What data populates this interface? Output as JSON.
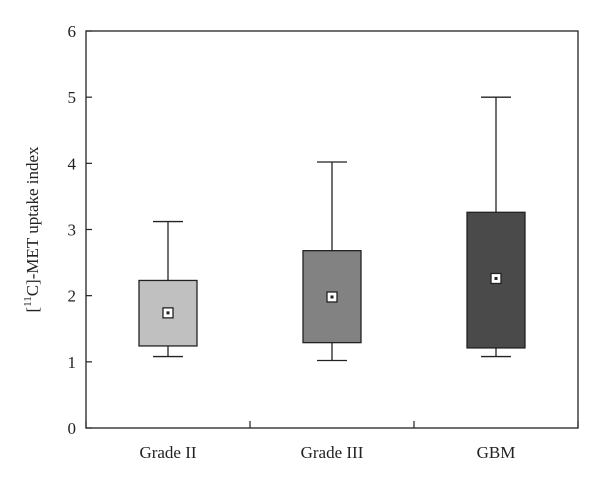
{
  "chart_data": {
    "type": "box",
    "title": "",
    "xlabel": "",
    "ylabel": "[11C]-MET uptake index",
    "ylabel_parts": {
      "pre": "[",
      "sup": "11",
      "post": "C]-MET uptake index"
    },
    "ylim": [
      0,
      6
    ],
    "yticks": [
      0,
      1,
      2,
      3,
      4,
      5,
      6
    ],
    "grid": false,
    "categories": [
      "Grade II",
      "Grade III",
      "GBM"
    ],
    "boxes": [
      {
        "category": "Grade II",
        "min": 1.08,
        "q1": 1.24,
        "q3": 2.23,
        "max": 3.12,
        "mean": 1.74,
        "color": "#c0c0c0"
      },
      {
        "category": "Grade III",
        "min": 1.02,
        "q1": 1.29,
        "q3": 2.68,
        "max": 4.02,
        "mean": 1.98,
        "color": "#828282"
      },
      {
        "category": "GBM",
        "min": 1.08,
        "q1": 1.21,
        "q3": 3.26,
        "max": 5.0,
        "mean": 2.26,
        "color": "#4a4a4a"
      }
    ]
  }
}
